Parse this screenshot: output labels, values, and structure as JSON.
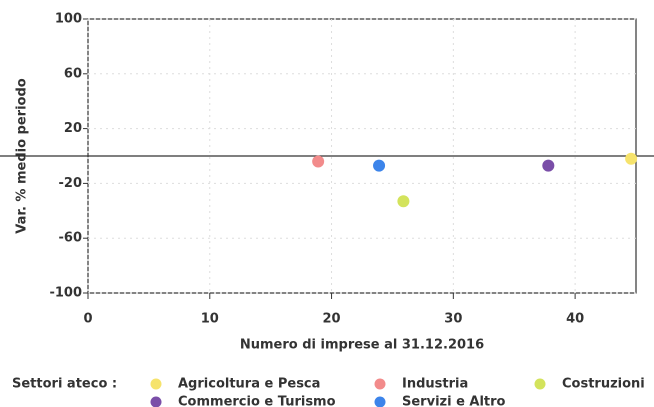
{
  "chart_data": {
    "type": "scatter",
    "x_label": "Numero di imprese al 31.12.2016",
    "y_label": "Var. % medio periodo",
    "legend_title": "Settori ateco :",
    "xlim": [
      0,
      45
    ],
    "xticks": [
      0,
      10,
      20,
      30,
      40
    ],
    "ylim": [
      -100,
      100
    ],
    "yticks": [
      100,
      60,
      20,
      -20,
      -60,
      -100
    ],
    "grid": true,
    "series": [
      {
        "name": "Agricoltura e Pesca",
        "color": "#f6e36c",
        "x": [
          44.6
        ],
        "values": [
          -2
        ]
      },
      {
        "name": "Industria",
        "color": "#f28b8b",
        "x": [
          18.9
        ],
        "values": [
          -4
        ]
      },
      {
        "name": "Costruzioni",
        "color": "#d3e35c",
        "x": [
          25.9
        ],
        "values": [
          -33
        ]
      },
      {
        "name": "Commercio e Turismo",
        "color": "#7a4ea8",
        "x": [
          37.8
        ],
        "values": [
          -7
        ]
      },
      {
        "name": "Servizi e Altro",
        "color": "#3c84ea",
        "x": [
          23.9
        ],
        "values": [
          -7
        ]
      }
    ]
  }
}
